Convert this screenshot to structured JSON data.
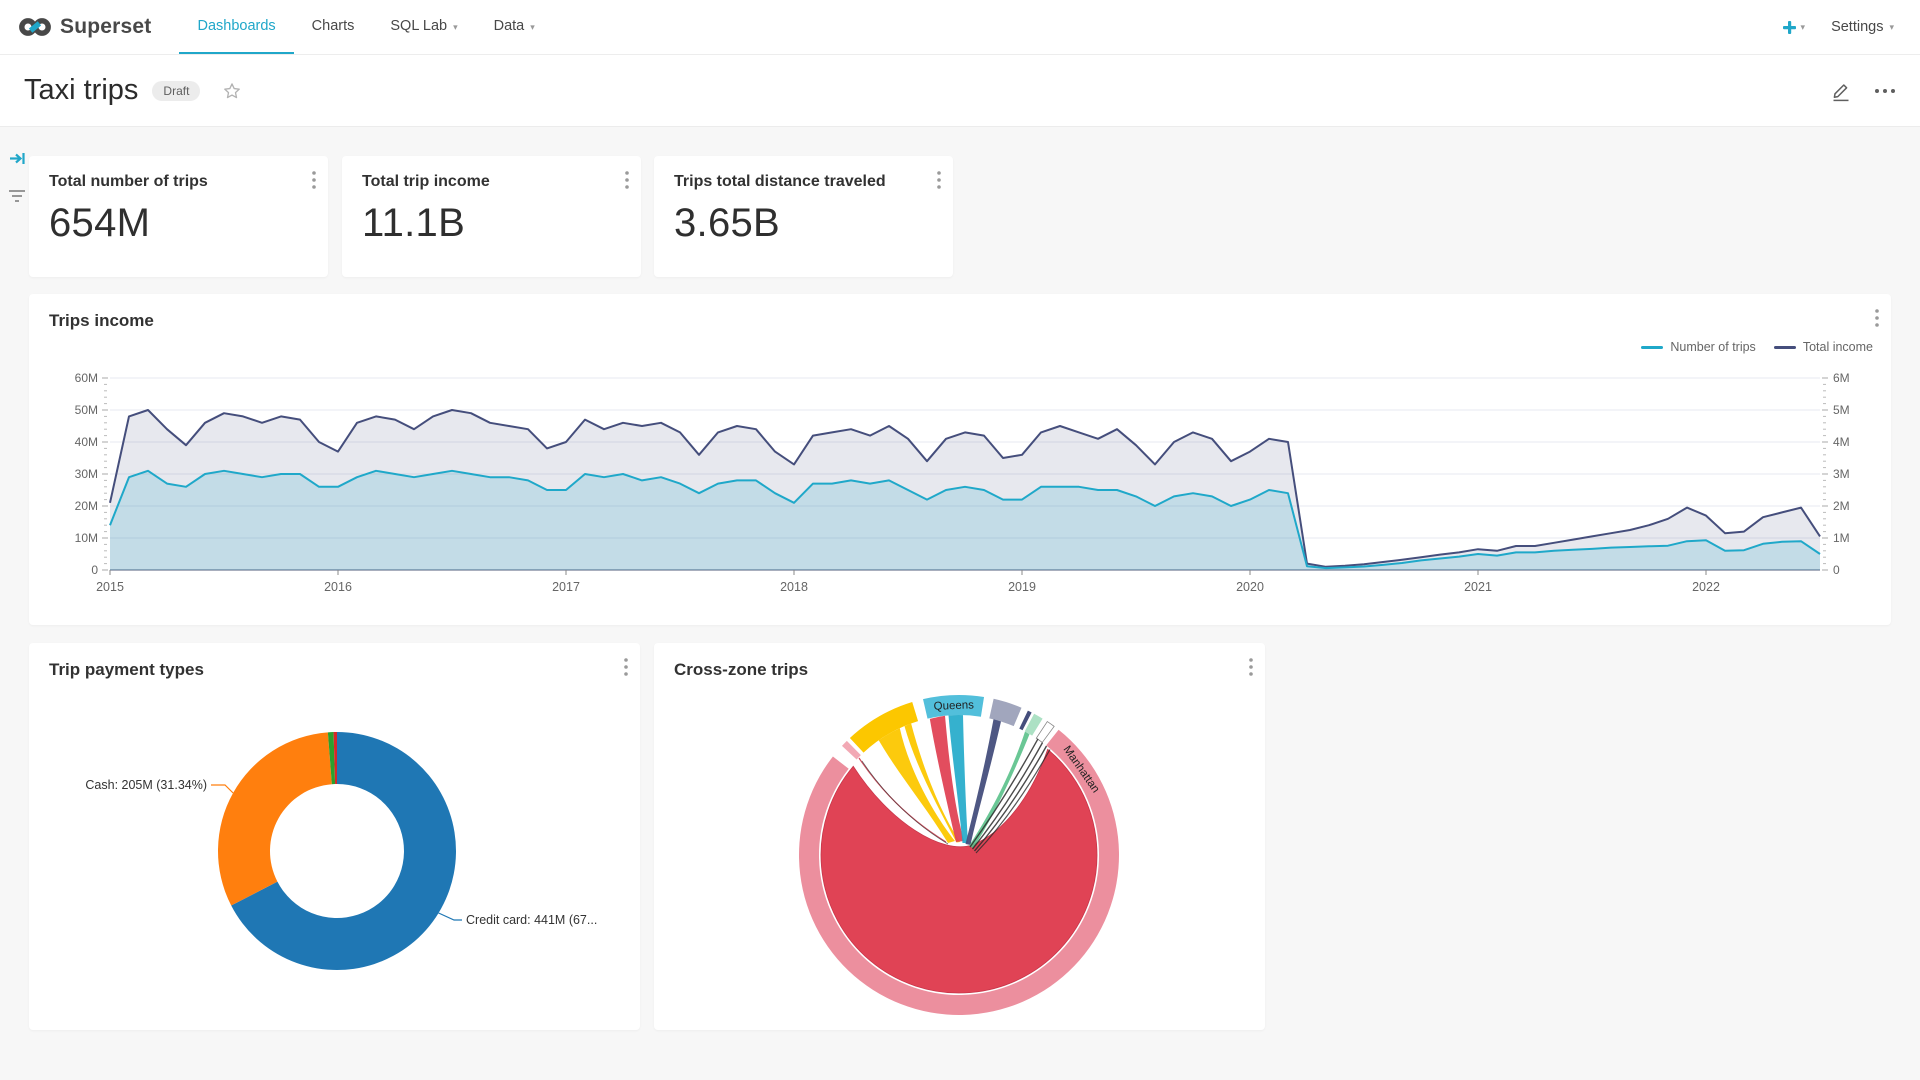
{
  "nav": {
    "brand": "Superset",
    "items": [
      {
        "label": "Dashboards",
        "active": true,
        "dropdown": false
      },
      {
        "label": "Charts",
        "active": false,
        "dropdown": false
      },
      {
        "label": "SQL Lab",
        "active": false,
        "dropdown": true
      },
      {
        "label": "Data",
        "active": false,
        "dropdown": true
      }
    ],
    "settings_label": "Settings"
  },
  "header": {
    "title": "Taxi trips",
    "badge": "Draft"
  },
  "kpis": [
    {
      "title": "Total number of trips",
      "value": "654M"
    },
    {
      "title": "Total trip income",
      "value": "11.1B"
    },
    {
      "title": "Trips total distance traveled",
      "value": "3.65B"
    }
  ],
  "panels": {
    "trips_income": {
      "title": "Trips income"
    },
    "payment": {
      "title": "Trip payment types"
    },
    "crosszone": {
      "title": "Cross-zone trips"
    }
  },
  "chart_data": [
    {
      "type": "line",
      "title": "Trips income",
      "grid": true,
      "legend_position": "top-right",
      "x_start": 2015,
      "x_step": 0.083333,
      "x_end": 2022.5,
      "x_ticks": [
        "2015",
        "2016",
        "2017",
        "2018",
        "2019",
        "2020",
        "2021",
        "2022"
      ],
      "y_axis": {
        "max": 60,
        "ticks": [
          "0",
          "10M",
          "20M",
          "30M",
          "40M",
          "50M",
          "60M"
        ]
      },
      "y2_axis": {
        "max": 6,
        "ticks": [
          "0",
          "1M",
          "2M",
          "3M",
          "4M",
          "5M",
          "6M"
        ]
      },
      "series": [
        {
          "name": "Total income",
          "color": "#454E7C",
          "fill": "rgba(69,78,124,0.13)",
          "axis": "left",
          "unit": "M",
          "values": [
            21,
            48,
            50,
            44,
            39,
            46,
            49,
            48,
            46,
            48,
            47,
            40,
            37,
            46,
            48,
            47,
            44,
            48,
            50,
            49,
            46,
            45,
            44,
            38,
            40,
            47,
            44,
            46,
            45,
            46,
            43,
            36,
            43,
            45,
            44,
            37,
            33,
            42,
            43,
            44,
            42,
            45,
            41,
            34,
            41,
            43,
            42,
            35,
            36,
            43,
            45,
            43,
            41,
            44,
            39,
            33,
            40,
            43,
            41,
            34,
            37,
            41,
            40,
            2,
            1,
            1.3,
            1.8,
            2.5,
            3.2,
            4,
            4.8,
            5.5,
            6.5,
            6,
            7.5,
            7.5,
            8.5,
            9.5,
            10.5,
            11.5,
            12.5,
            14,
            16,
            19.5,
            17,
            11.5,
            12,
            16.5,
            18,
            19.5,
            10.5
          ]
        },
        {
          "name": "Number of trips",
          "color": "#1FA8C9",
          "fill": "rgba(31,168,201,0.18)",
          "axis": "right",
          "unit": "M",
          "values": [
            1.4,
            2.9,
            3.1,
            2.7,
            2.6,
            3.0,
            3.1,
            3.0,
            2.9,
            3.0,
            3.0,
            2.6,
            2.6,
            2.9,
            3.1,
            3.0,
            2.9,
            3.0,
            3.1,
            3.0,
            2.9,
            2.9,
            2.8,
            2.5,
            2.5,
            3.0,
            2.9,
            3.0,
            2.8,
            2.9,
            2.7,
            2.4,
            2.7,
            2.8,
            2.8,
            2.4,
            2.1,
            2.7,
            2.7,
            2.8,
            2.7,
            2.8,
            2.5,
            2.2,
            2.5,
            2.6,
            2.5,
            2.2,
            2.2,
            2.6,
            2.6,
            2.6,
            2.5,
            2.5,
            2.3,
            2.0,
            2.3,
            2.4,
            2.3,
            2.0,
            2.2,
            2.5,
            2.4,
            0.12,
            0.06,
            0.08,
            0.11,
            0.16,
            0.22,
            0.3,
            0.36,
            0.42,
            0.5,
            0.45,
            0.55,
            0.55,
            0.6,
            0.63,
            0.66,
            0.7,
            0.72,
            0.74,
            0.76,
            0.9,
            0.93,
            0.6,
            0.62,
            0.82,
            0.88,
            0.9,
            0.5
          ]
        }
      ]
    },
    {
      "type": "pie",
      "title": "Trip payment types",
      "donut": true,
      "slices": [
        {
          "label": "Credit card",
          "value": 441,
          "unit": "M",
          "pct": 67.43,
          "color": "#1f77b4",
          "callout": "Credit card: 441M (67..."
        },
        {
          "label": "Cash",
          "value": 205,
          "unit": "M",
          "pct": 31.34,
          "color": "#ff7f0e",
          "callout": "Cash: 205M (31.34%)"
        },
        {
          "label": "",
          "value": 5,
          "unit": "M",
          "color": "#2ca02c",
          "callout": ""
        },
        {
          "label": "",
          "value": 3,
          "unit": "M",
          "color": "#d62728",
          "callout": ""
        }
      ]
    },
    {
      "type": "chord",
      "title": "Cross-zone trips",
      "labels_visible": [
        "Queens",
        "Manhattan"
      ],
      "segments": [
        {
          "label": "Manhattan",
          "start": 38.5,
          "end": 308,
          "color": "#EC8F9E",
          "label_angle": 55
        },
        {
          "label": "",
          "start": -47,
          "end": -44.5,
          "color": "#F2A9B5"
        },
        {
          "label": "",
          "start": -43,
          "end": -17,
          "color": "#FCC700"
        },
        {
          "label": "Queens",
          "start": -13,
          "end": 9,
          "color": "#52BFDB",
          "label_angle": -2
        },
        {
          "label": "",
          "start": 12.5,
          "end": 23,
          "color": "#A1A6BD"
        },
        {
          "label": "",
          "start": 25.5,
          "end": 27,
          "color": "#454E7C"
        },
        {
          "label": "",
          "start": 28,
          "end": 31.5,
          "color": "#ACE1C4"
        },
        {
          "label": "",
          "start": 33.5,
          "end": 36.5,
          "color": "#FFFFFF"
        }
      ],
      "ribbon_colors": {
        "self": "#E04355",
        "yellow": "#FCC700",
        "cyan": "#1FA8C9",
        "navy": "#454E7C",
        "green": "#5AC189",
        "thin": "#333333"
      }
    }
  ]
}
